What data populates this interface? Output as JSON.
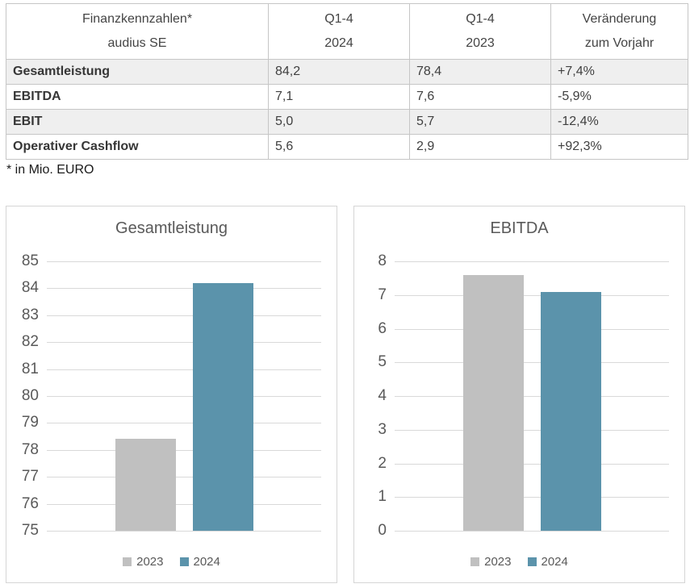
{
  "table": {
    "columns": [
      {
        "line1": "Finanzkennzahlen*",
        "line2": "audius SE"
      },
      {
        "line1": "Q1-4",
        "line2": "2024"
      },
      {
        "line1": "Q1-4",
        "line2": "2023"
      },
      {
        "line1": "Veränderung",
        "line2": "zum Vorjahr"
      }
    ],
    "rows": [
      {
        "label": "Gesamtleistung",
        "v2024": "84,2",
        "v2023": "78,4",
        "change": "+7,4%"
      },
      {
        "label": "EBITDA",
        "v2024": "7,1",
        "v2023": "7,6",
        "change": "-5,9%"
      },
      {
        "label": "EBIT",
        "v2024": "5,0",
        "v2023": "5,7",
        "change": "-12,4%"
      },
      {
        "label": "Operativer Cashflow",
        "v2024": "5,6",
        "v2023": "2,9",
        "change": "+92,3%"
      }
    ],
    "footnote": "* in Mio. EURO"
  },
  "colors": {
    "series_2023": "#C0C0C0",
    "series_2024": "#5B93AB",
    "row_shading": "#EFEFEF",
    "table_border": "#C6C6C6",
    "panel_border": "#D5D5D5",
    "gridline": "#D9D9D9",
    "chart_text": "#595959"
  },
  "chart_data": [
    {
      "type": "bar",
      "title": "Gesamtleistung",
      "categories": [
        "2023",
        "2024"
      ],
      "series": [
        {
          "name": "2023",
          "values": [
            78.4
          ],
          "color": "#C0C0C0"
        },
        {
          "name": "2024",
          "values": [
            84.2
          ],
          "color": "#5B93AB"
        }
      ],
      "xlabel": "",
      "ylabel": "",
      "ylim": [
        75,
        85
      ],
      "ytick_step": 1,
      "grid": true,
      "legend_position": "bottom",
      "legend": [
        "2023",
        "2024"
      ]
    },
    {
      "type": "bar",
      "title": "EBITDA",
      "categories": [
        "2023",
        "2024"
      ],
      "series": [
        {
          "name": "2023",
          "values": [
            7.6
          ],
          "color": "#C0C0C0"
        },
        {
          "name": "2024",
          "values": [
            7.1
          ],
          "color": "#5B93AB"
        }
      ],
      "xlabel": "",
      "ylabel": "",
      "ylim": [
        0,
        8
      ],
      "ytick_step": 1,
      "grid": true,
      "legend_position": "bottom",
      "legend": [
        "2023",
        "2024"
      ]
    }
  ]
}
